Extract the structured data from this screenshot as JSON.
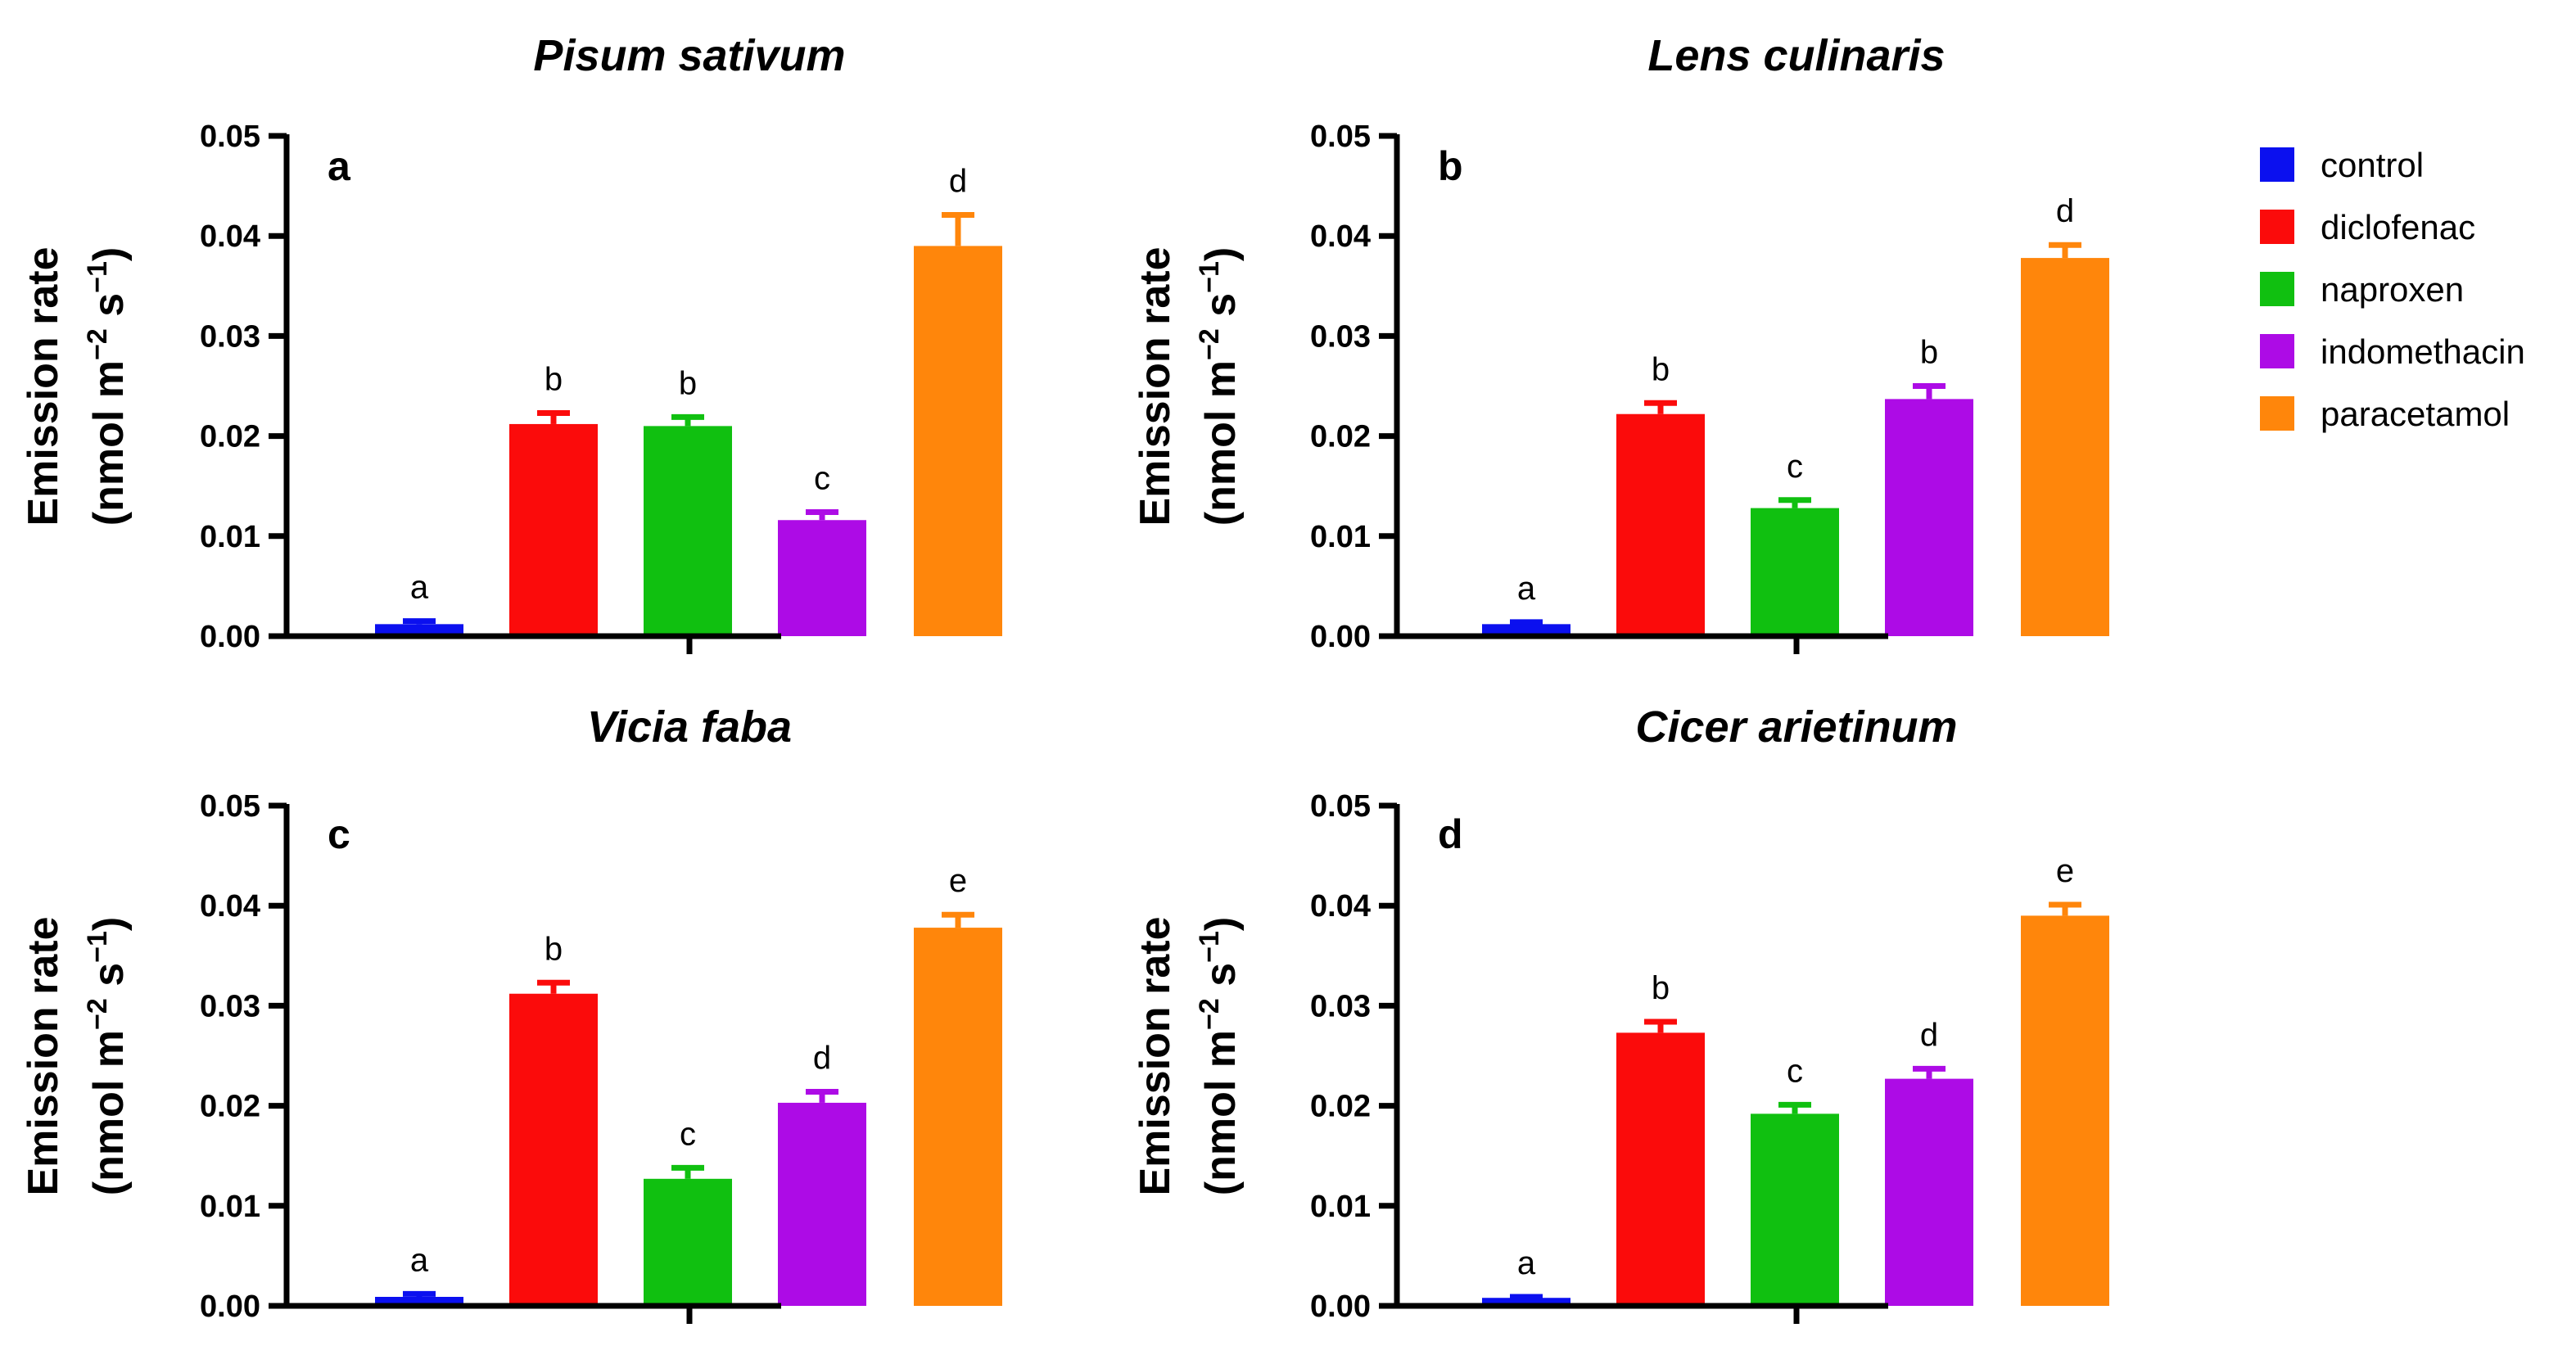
{
  "figure": {
    "colors": {
      "control": "#0b10ef",
      "diclofenac": "#fb0b0b",
      "naproxen": "#10c010",
      "indomethacin": "#ad0be6",
      "paracetamol": "#ff860b",
      "axis": "#000000"
    },
    "legend": {
      "items": [
        {
          "key": "control",
          "label": "control"
        },
        {
          "key": "diclofenac",
          "label": "diclofenac"
        },
        {
          "key": "naproxen",
          "label": "naproxen"
        },
        {
          "key": "indomethacin",
          "label": "indomethacin"
        },
        {
          "key": "paracetamol",
          "label": "paracetamol"
        }
      ]
    }
  },
  "chart_data": [
    {
      "type": "bar",
      "panel": "a",
      "title": "Pisum sativum",
      "ylabel_line1": "Emission rate",
      "ylabel_line2_parts": [
        "(nmol m",
        "−2",
        " s",
        "−1",
        ")"
      ],
      "ylim": [
        0,
        0.05
      ],
      "yticks": [
        "0.00",
        "0.01",
        "0.02",
        "0.03",
        "0.04",
        "0.05"
      ],
      "categories": [
        "control",
        "diclofenac",
        "naproxen",
        "indomethacin",
        "paracetamol"
      ],
      "values": [
        0.0012,
        0.0212,
        0.021,
        0.0116,
        0.039
      ],
      "errors": [
        0.0003,
        0.0011,
        0.0009,
        0.0008,
        0.0031
      ],
      "letters": [
        "a",
        "b",
        "b",
        "c",
        "d"
      ]
    },
    {
      "type": "bar",
      "panel": "b",
      "title": "Lens culinaris",
      "ylabel_line1": "Emission rate",
      "ylabel_line2_parts": [
        "(nmol m",
        "−2",
        " s",
        "−1",
        ")"
      ],
      "ylim": [
        0,
        0.05
      ],
      "yticks": [
        "0.00",
        "0.01",
        "0.02",
        "0.03",
        "0.04",
        "0.05"
      ],
      "categories": [
        "control",
        "diclofenac",
        "naproxen",
        "indomethacin",
        "paracetamol"
      ],
      "values": [
        0.0012,
        0.0222,
        0.0128,
        0.0237,
        0.0378
      ],
      "errors": [
        0.0002,
        0.0011,
        0.0008,
        0.0013,
        0.0013
      ],
      "letters": [
        "a",
        "b",
        "c",
        "b",
        "d"
      ]
    },
    {
      "type": "bar",
      "panel": "c",
      "title": "Vicia faba",
      "ylabel_line1": "Emission rate",
      "ylabel_line2_parts": [
        "(nmol m",
        "−2",
        " s",
        "−1",
        ")"
      ],
      "ylim": [
        0,
        0.05
      ],
      "yticks": [
        "0.00",
        "0.01",
        "0.02",
        "0.03",
        "0.04",
        "0.05"
      ],
      "categories": [
        "control",
        "diclofenac",
        "naproxen",
        "indomethacin",
        "paracetamol"
      ],
      "values": [
        0.0009,
        0.0312,
        0.0127,
        0.0203,
        0.0378
      ],
      "errors": [
        0.0003,
        0.0011,
        0.0011,
        0.0011,
        0.0013
      ],
      "letters": [
        "a",
        "b",
        "c",
        "d",
        "e"
      ]
    },
    {
      "type": "bar",
      "panel": "d",
      "title": "Cicer arietinum",
      "ylabel_line1": "Emission rate",
      "ylabel_line2_parts": [
        "(nmol m",
        "−2",
        " s",
        "−1",
        ")"
      ],
      "ylim": [
        0,
        0.05
      ],
      "yticks": [
        "0.00",
        "0.01",
        "0.02",
        "0.03",
        "0.04",
        "0.05"
      ],
      "categories": [
        "control",
        "diclofenac",
        "naproxen",
        "indomethacin",
        "paracetamol"
      ],
      "values": [
        0.0008,
        0.0273,
        0.0192,
        0.0227,
        0.039
      ],
      "errors": [
        0.0001,
        0.0011,
        0.0009,
        0.001,
        0.0011
      ],
      "letters": [
        "a",
        "b",
        "c",
        "d",
        "e"
      ]
    }
  ]
}
